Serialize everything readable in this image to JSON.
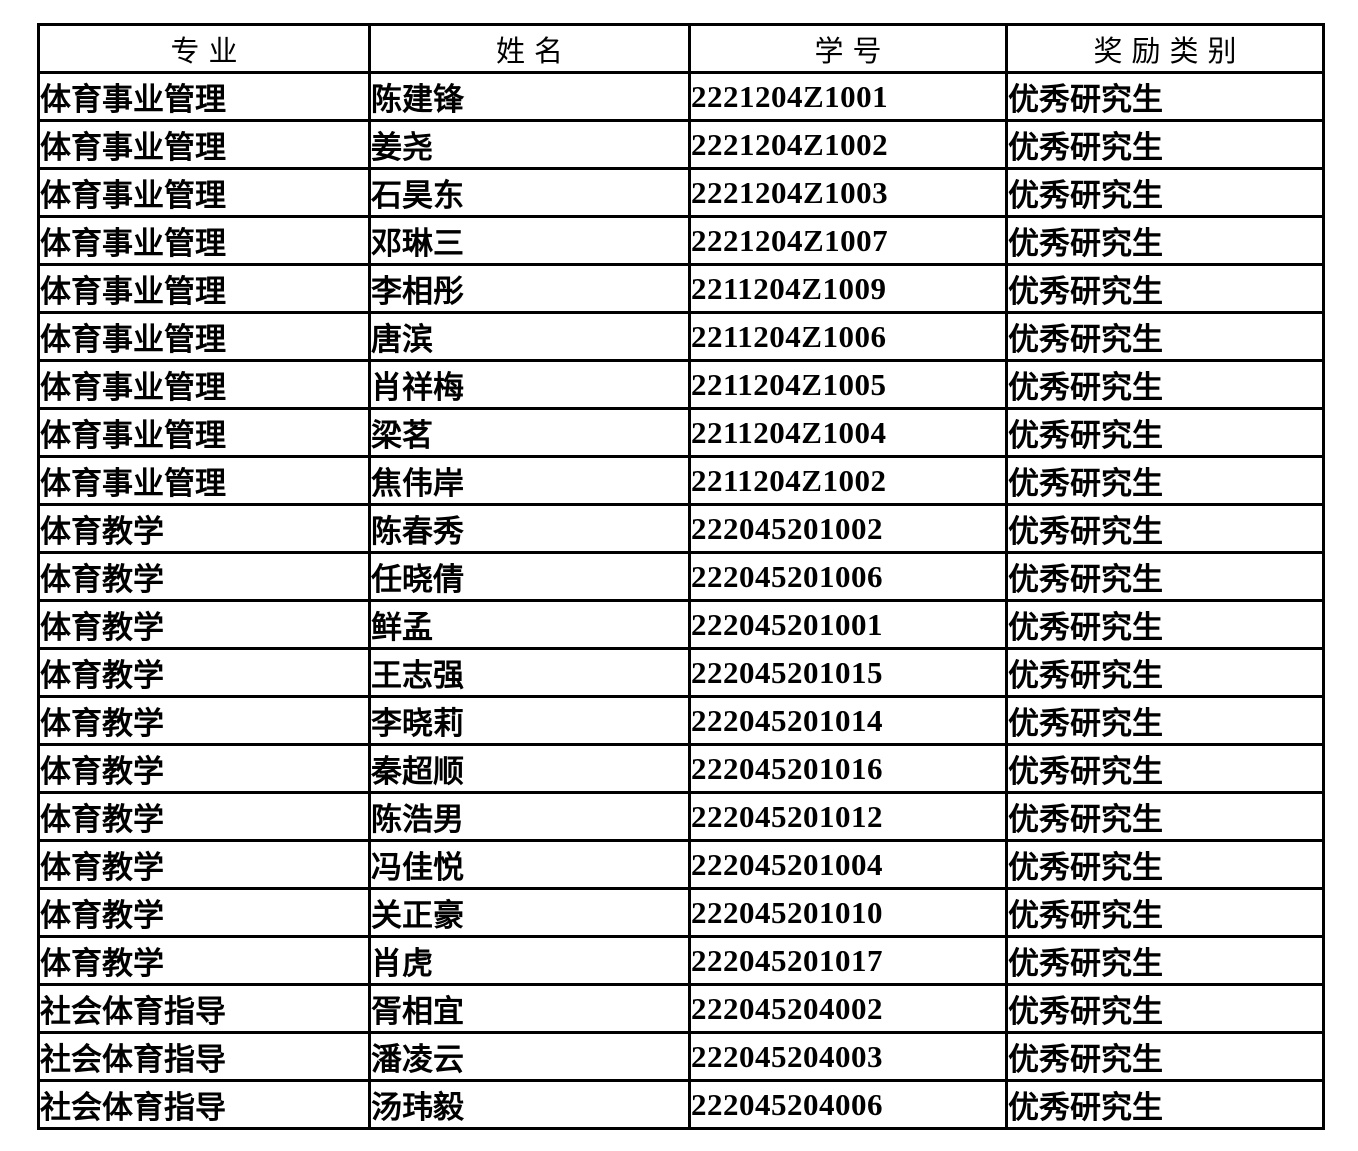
{
  "colors": {
    "background": "#ffffff",
    "border": "#000000",
    "text": "#000000"
  },
  "table": {
    "columns": [
      {
        "key": "major",
        "label": "专业"
      },
      {
        "key": "name",
        "label": "姓名"
      },
      {
        "key": "student_id",
        "label": "学号"
      },
      {
        "key": "award",
        "label": "奖励类别"
      }
    ],
    "rows": [
      {
        "major": "体育事业管理",
        "name": "陈建锋",
        "student_id": "2221204Z1001",
        "award": "优秀研究生"
      },
      {
        "major": "体育事业管理",
        "name": "姜尧",
        "student_id": "2221204Z1002",
        "award": "优秀研究生"
      },
      {
        "major": "体育事业管理",
        "name": "石昊东",
        "student_id": "2221204Z1003",
        "award": "优秀研究生"
      },
      {
        "major": "体育事业管理",
        "name": "邓琳三",
        "student_id": "2221204Z1007",
        "award": "优秀研究生"
      },
      {
        "major": "体育事业管理",
        "name": "李相彤",
        "student_id": "2211204Z1009",
        "award": "优秀研究生"
      },
      {
        "major": "体育事业管理",
        "name": "唐滨",
        "student_id": "2211204Z1006",
        "award": "优秀研究生"
      },
      {
        "major": "体育事业管理",
        "name": "肖祥梅",
        "student_id": "2211204Z1005",
        "award": "优秀研究生"
      },
      {
        "major": "体育事业管理",
        "name": "梁茗",
        "student_id": "2211204Z1004",
        "award": "优秀研究生"
      },
      {
        "major": "体育事业管理",
        "name": "焦伟岸",
        "student_id": "2211204Z1002",
        "award": "优秀研究生"
      },
      {
        "major": "体育教学",
        "name": "陈春秀",
        "student_id": "222045201002",
        "award": "优秀研究生"
      },
      {
        "major": "体育教学",
        "name": "任晓倩",
        "student_id": "222045201006",
        "award": "优秀研究生"
      },
      {
        "major": "体育教学",
        "name": "鲜孟",
        "student_id": "222045201001",
        "award": "优秀研究生"
      },
      {
        "major": "体育教学",
        "name": "王志强",
        "student_id": "222045201015",
        "award": "优秀研究生"
      },
      {
        "major": "体育教学",
        "name": "李晓莉",
        "student_id": "222045201014",
        "award": "优秀研究生"
      },
      {
        "major": "体育教学",
        "name": "秦超顺",
        "student_id": "222045201016",
        "award": "优秀研究生"
      },
      {
        "major": "体育教学",
        "name": "陈浩男",
        "student_id": "222045201012",
        "award": "优秀研究生"
      },
      {
        "major": "体育教学",
        "name": "冯佳悦",
        "student_id": "222045201004",
        "award": "优秀研究生"
      },
      {
        "major": "体育教学",
        "name": "关正豪",
        "student_id": "222045201010",
        "award": "优秀研究生"
      },
      {
        "major": "体育教学",
        "name": "肖虎",
        "student_id": "222045201017",
        "award": "优秀研究生"
      },
      {
        "major": "社会体育指导",
        "name": "胥相宜",
        "student_id": "222045204002",
        "award": "优秀研究生"
      },
      {
        "major": "社会体育指导",
        "name": "潘凌云",
        "student_id": "222045204003",
        "award": "优秀研究生"
      },
      {
        "major": "社会体育指导",
        "name": "汤玮毅",
        "student_id": "222045204006",
        "award": "优秀研究生"
      }
    ]
  }
}
